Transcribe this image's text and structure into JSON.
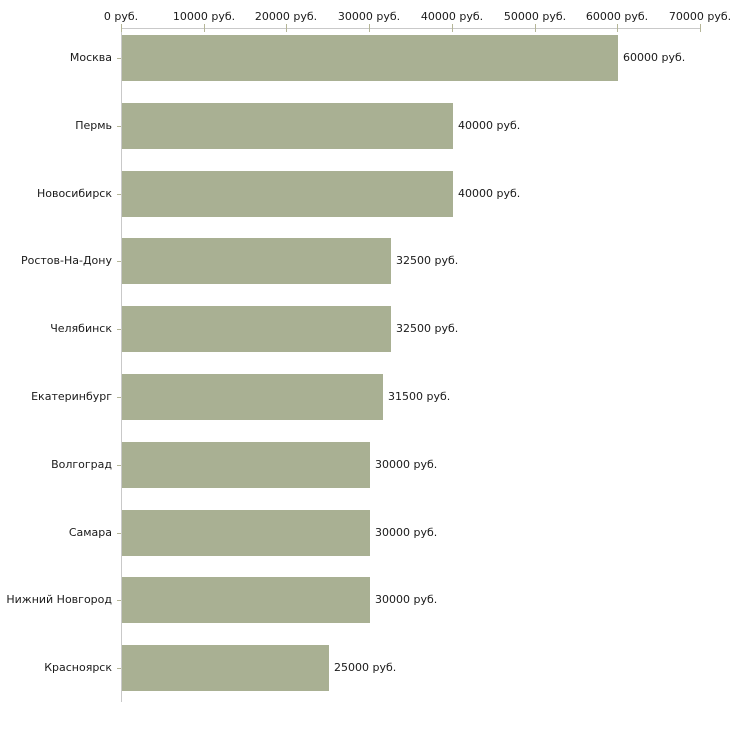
{
  "chart_data": {
    "type": "bar",
    "orientation": "horizontal",
    "categories": [
      "Москва",
      "Пермь",
      "Новосибирск",
      "Ростов-На-Дону",
      "Челябинск",
      "Екатеринбург",
      "Волгоград",
      "Самара",
      "Нижний Новгород",
      "Красноярск"
    ],
    "values": [
      60000,
      40000,
      40000,
      32500,
      32500,
      31500,
      30000,
      30000,
      30000,
      25000
    ],
    "value_labels": [
      "60000 руб.",
      "40000 руб.",
      "40000 руб.",
      "32500 руб.",
      "32500 руб.",
      "31500 руб.",
      "30000 руб.",
      "30000 руб.",
      "30000 руб.",
      "25000 руб."
    ],
    "title": "",
    "xlabel": "",
    "ylabel": "",
    "xlim": [
      0,
      70000
    ],
    "x_ticks": [
      0,
      10000,
      20000,
      30000,
      40000,
      50000,
      60000,
      70000
    ],
    "x_tick_labels": [
      "0 руб.",
      "10000 руб.",
      "20000 руб.",
      "30000 руб.",
      "40000 руб.",
      "50000 руб.",
      "60000 руб.",
      "70000 руб."
    ],
    "grid": false,
    "legend": false,
    "axis_position": "top"
  },
  "colors": {
    "bar": "#a9b093",
    "axis_line": "#c9c9c9",
    "tick_mark": "#b5b698",
    "text": "#1a1a1a"
  }
}
